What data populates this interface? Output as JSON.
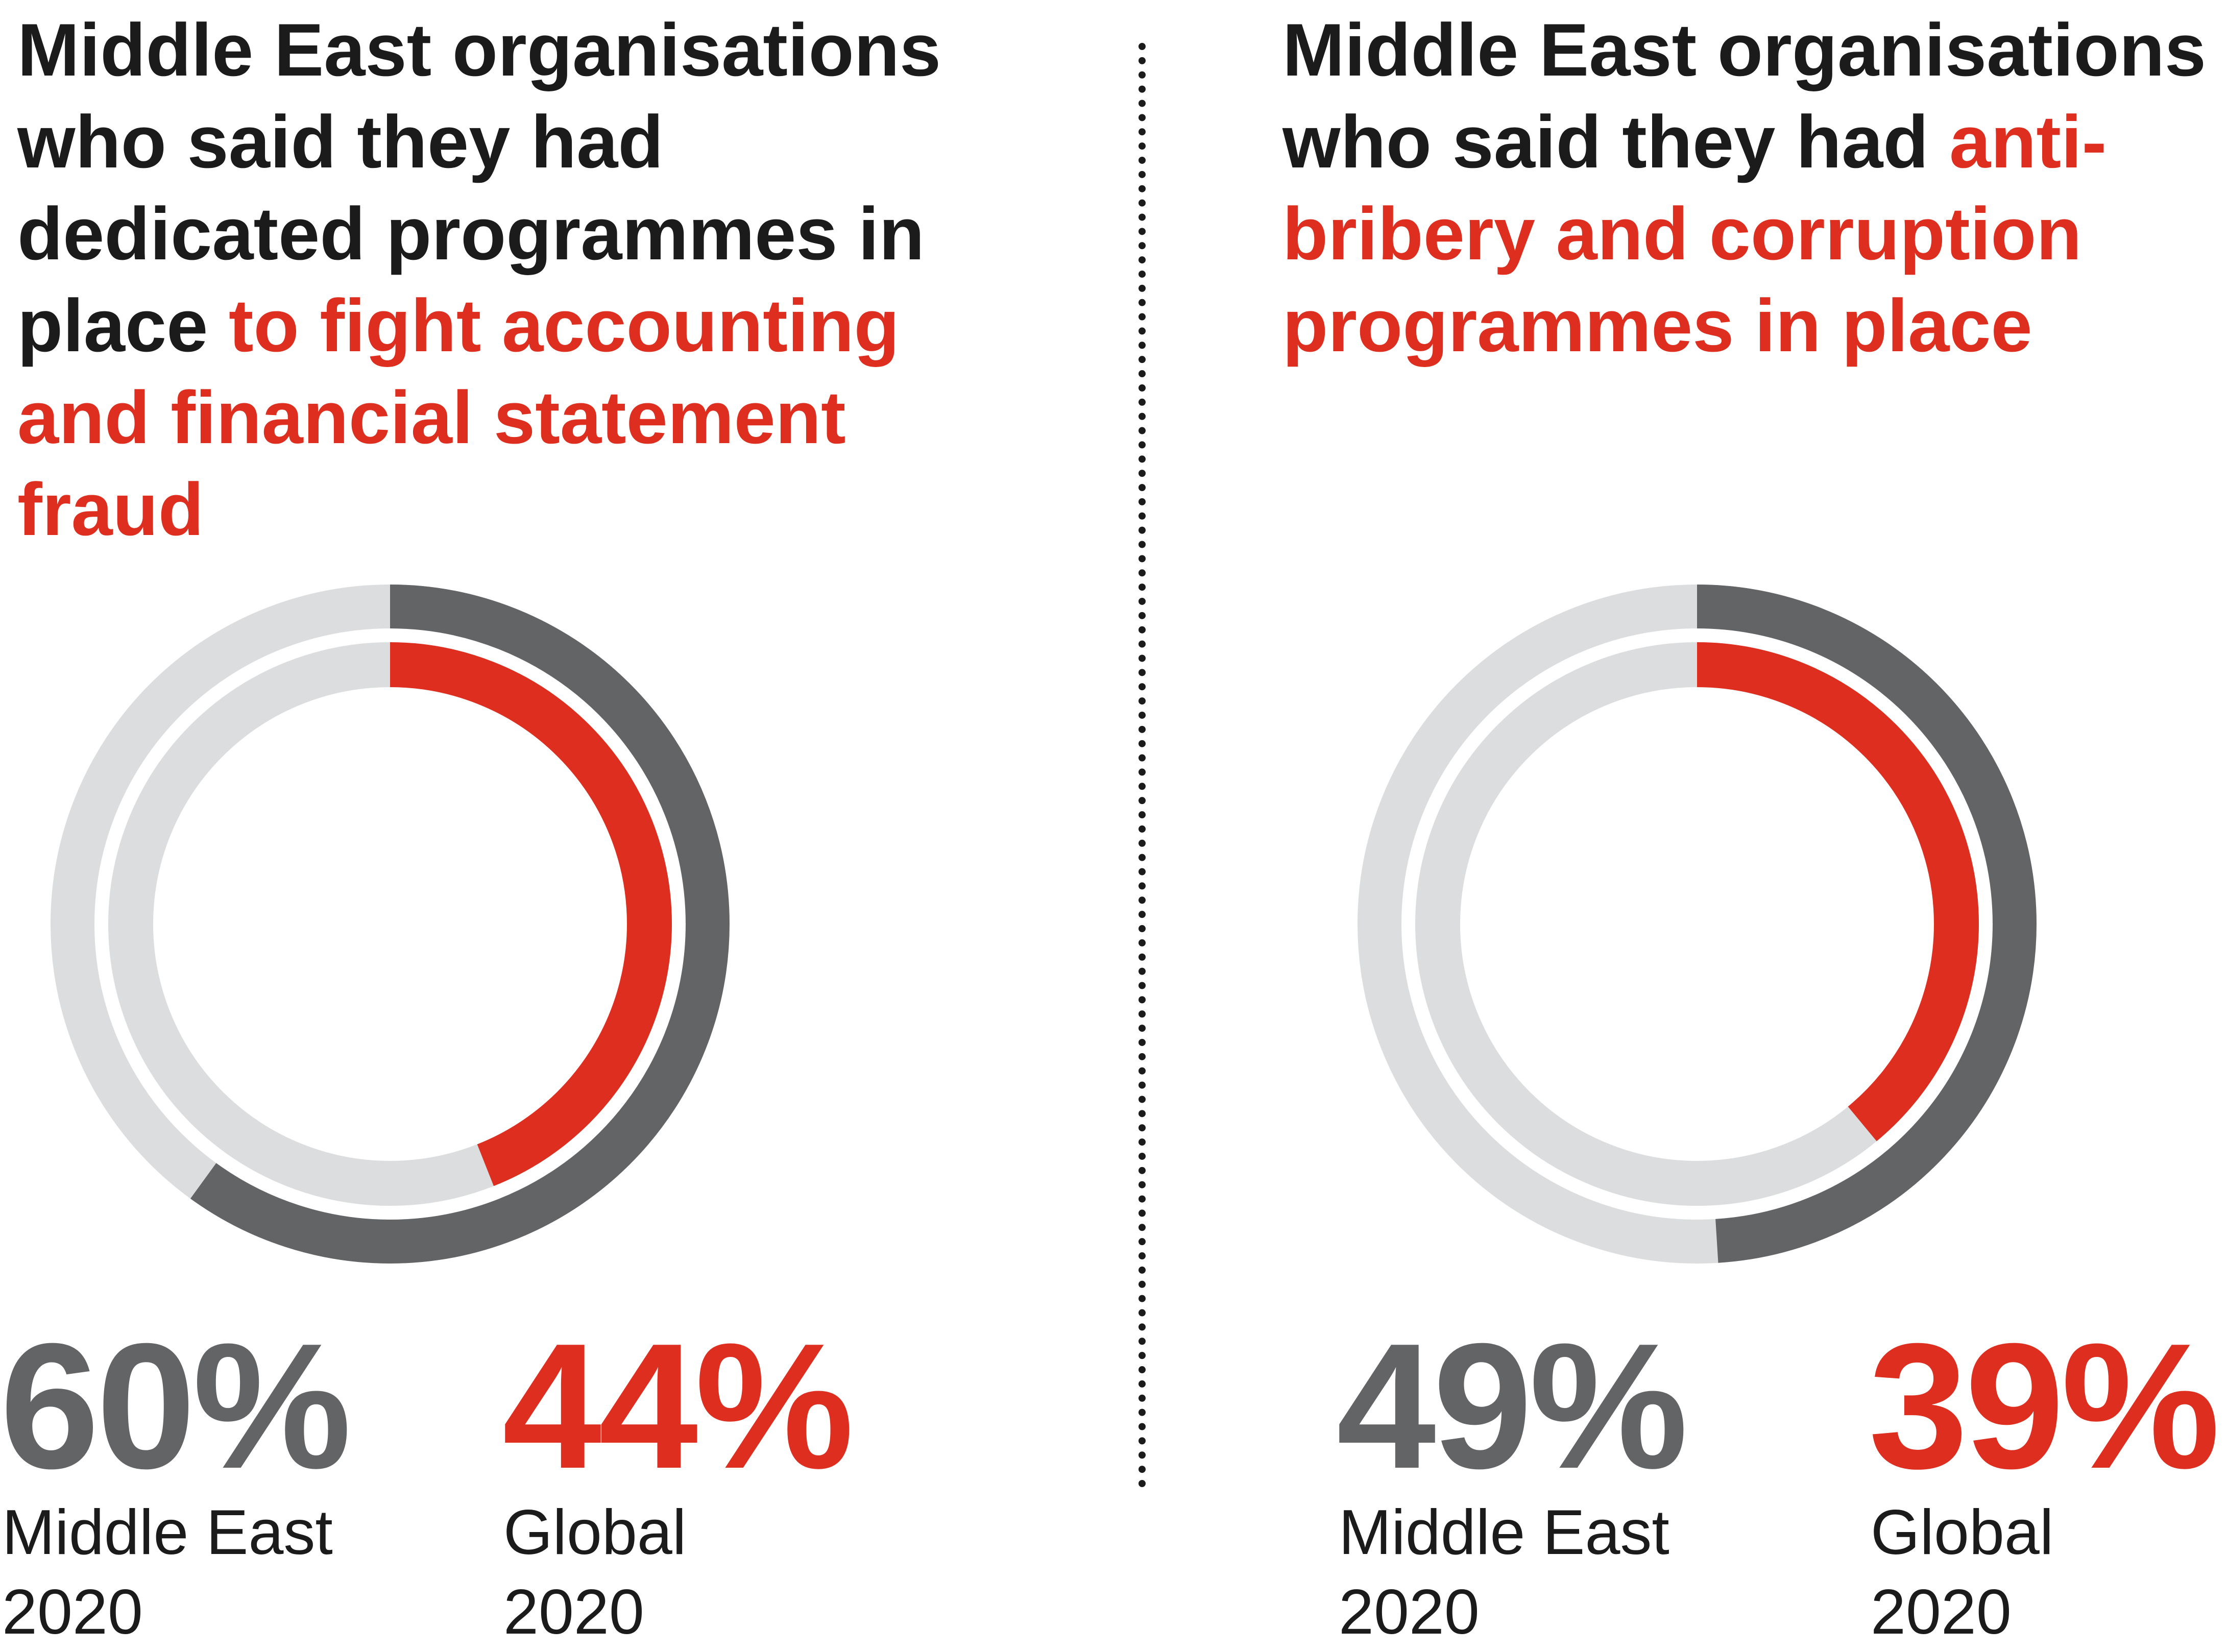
{
  "colors": {
    "middle_east": "#636466",
    "global": "#de2e1f",
    "track": "#dcddde",
    "text": "#1b1b1b"
  },
  "chart_data": [
    {
      "type": "donut",
      "title_plain": "Middle East organisations who said they had dedicated programmes in place ",
      "title_highlight": "to fight accounting and financial statement fraud",
      "series": [
        {
          "name": "Middle East 2020",
          "value": 60,
          "label": "60%",
          "line1": "Middle East",
          "line2": "2020"
        },
        {
          "name": "Global 2020",
          "value": 44,
          "label": "44%",
          "line1": "Global",
          "line2": "2020"
        }
      ]
    },
    {
      "type": "donut",
      "title_plain": "Middle East organisations who said they had ",
      "title_highlight": "anti-bribery and corruption programmes in place",
      "series": [
        {
          "name": "Middle East 2020",
          "value": 49,
          "label": "49%",
          "line1": "Middle East",
          "line2": "2020"
        },
        {
          "name": "Global 2020",
          "value": 39,
          "label": "39%",
          "line1": "Global",
          "line2": "2020"
        }
      ]
    }
  ]
}
